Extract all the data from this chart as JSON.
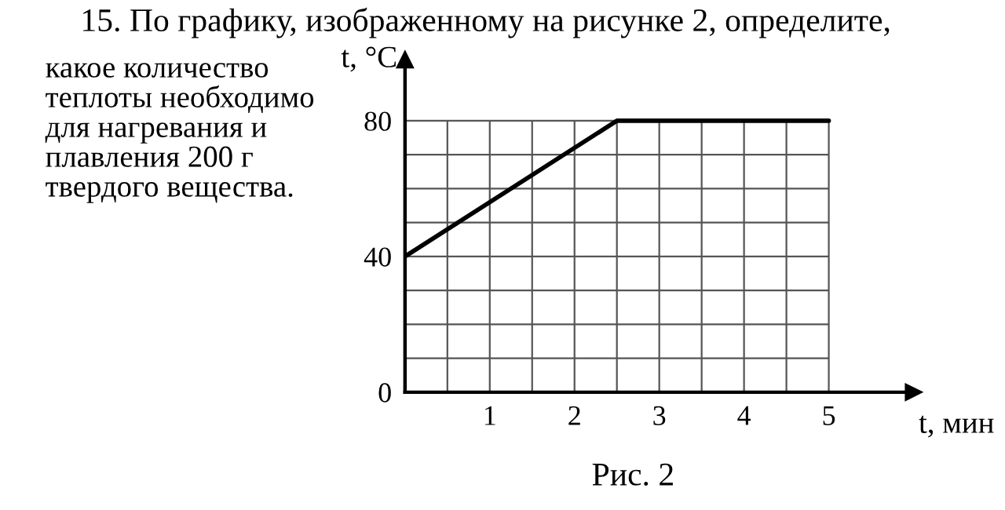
{
  "chart_data": {
    "type": "line",
    "title": "15. По графику, изображенному на рисунке 2, определите,",
    "annotations": [
      "какое количество теплоты необходимо для нагревания и плавления 200 г твердого вещества.",
      "Рис. 2"
    ],
    "xlabel": "t, мин",
    "ylabel": "t, °C",
    "x": [
      0,
      2.5,
      5
    ],
    "series": [
      {
        "color": "#000000",
        "values": [
          40,
          80,
          80
        ]
      }
    ],
    "xlim": [
      0,
      6
    ],
    "ylim": [
      0,
      98
    ],
    "xticks": [
      {
        "value": 0.5,
        "label": null
      },
      1,
      {
        "value": 1.5,
        "label": null
      },
      2,
      {
        "value": 2.5,
        "label": null
      },
      3,
      {
        "value": 3.5,
        "label": null
      },
      4,
      {
        "value": 4.5,
        "label": null
      },
      5
    ],
    "yticks": [
      0,
      {
        "value": 10,
        "label": null
      },
      {
        "value": 20,
        "label": null
      },
      {
        "value": 30,
        "label": null
      },
      40,
      {
        "value": 50,
        "label": null
      },
      {
        "value": 60,
        "label": null
      },
      {
        "value": 70,
        "label": null
      },
      80
    ],
    "grid": true,
    "marker": "none",
    "line_style": "solid",
    "legend": false
  }
}
